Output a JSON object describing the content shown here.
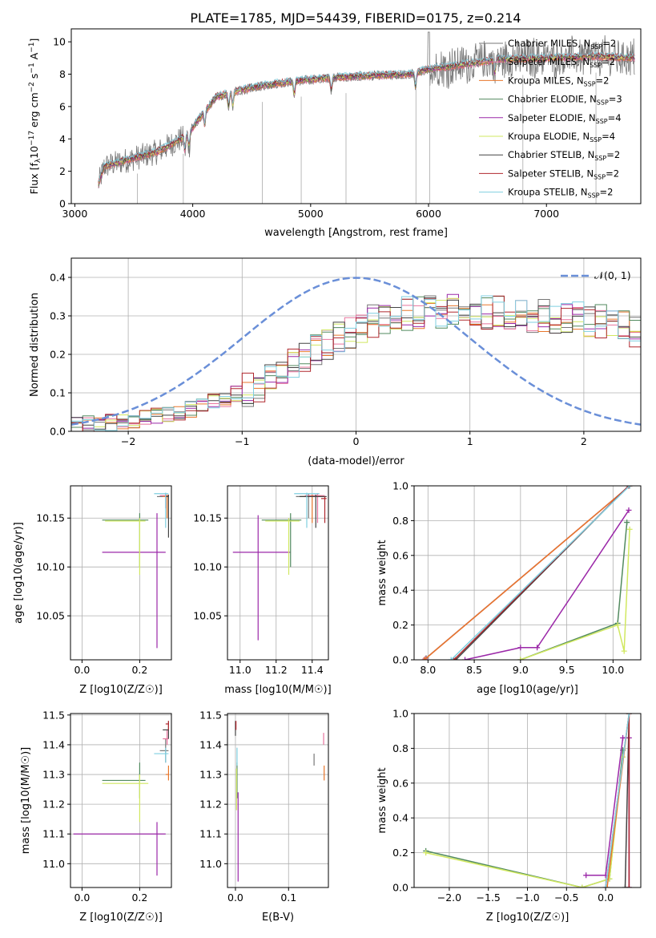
{
  "figure_title": "PLATE=1785, MJD=54439, FIBERID=0175, z=0.214",
  "models": [
    {
      "name": "Chabrier MILES",
      "nssp": "2",
      "color": "#777777"
    },
    {
      "name": "Salpeter MILES",
      "nssp": "2",
      "color": "#e8749e"
    },
    {
      "name": "Kroupa MILES",
      "nssp": "2",
      "color": "#e8762b"
    },
    {
      "name": "Chabrier ELODIE",
      "nssp": "3",
      "color": "#528a5f"
    },
    {
      "name": "Salpeter ELODIE",
      "nssp": "4",
      "color": "#9b28a8"
    },
    {
      "name": "Kroupa ELODIE",
      "nssp": "4",
      "color": "#d1e860"
    },
    {
      "name": "Chabrier STELIB",
      "nssp": "2",
      "color": "#444444"
    },
    {
      "name": "Salpeter STELIB",
      "nssp": "2",
      "color": "#b0282f"
    },
    {
      "name": "Kroupa STELIB",
      "nssp": "2",
      "color": "#7fcfe0"
    }
  ],
  "chart_data": [
    {
      "id": "spectrum",
      "type": "line",
      "title": "PLATE=1785, MJD=54439, FIBERID=0175, z=0.214",
      "xlabel": "wavelength [Angstrom, rest frame]",
      "ylabel_parts": {
        "pre": "Flux [f",
        "sub": "λ",
        "mid": "10",
        "sup1": "−17",
        "post": " erg cm",
        "sup2": "−2",
        "post2": " s",
        "sup3": "−1",
        "post3": " A",
        "sup4": "−1",
        "end": "]"
      },
      "xlim": [
        2970,
        7800
      ],
      "ylim": [
        0,
        10.8
      ],
      "xticks": [
        3000,
        4000,
        5000,
        6000,
        7000
      ],
      "yticks": [
        0,
        2,
        4,
        6,
        8,
        10
      ],
      "data_range": [
        3200,
        7750
      ],
      "continuum": [
        [
          3200,
          1.2
        ],
        [
          3250,
          2.3
        ],
        [
          3400,
          2.6
        ],
        [
          3550,
          2.9
        ],
        [
          3700,
          3.2
        ],
        [
          3850,
          3.8
        ],
        [
          3950,
          4.2
        ],
        [
          4050,
          5.2
        ],
        [
          4200,
          6.6
        ],
        [
          4400,
          7.0
        ],
        [
          4600,
          7.3
        ],
        [
          4900,
          7.6
        ],
        [
          5200,
          7.8
        ],
        [
          5500,
          7.9
        ],
        [
          5850,
          8.0
        ],
        [
          6000,
          8.3
        ],
        [
          6300,
          8.6
        ],
        [
          6600,
          8.9
        ],
        [
          7000,
          9.0
        ],
        [
          7400,
          9.1
        ],
        [
          7750,
          9.0
        ]
      ]
    },
    {
      "id": "residuals",
      "type": "histogram",
      "xlabel": "(data-model)/error",
      "ylabel": "Normed distribution",
      "xlim": [
        -2.5,
        2.5
      ],
      "ylim": [
        0,
        0.45
      ],
      "xticks": [
        -2,
        -1,
        0,
        1,
        2
      ],
      "yticks": [
        0.0,
        0.1,
        0.2,
        0.3,
        0.4
      ],
      "gauss_label": "𝒩(0, 1)",
      "gauss_color": "#6a8fd8",
      "bin_width": 0.1,
      "base": [
        0.015,
        0.018,
        0.02,
        0.023,
        0.026,
        0.03,
        0.034,
        0.038,
        0.043,
        0.05,
        0.058,
        0.066,
        0.075,
        0.085,
        0.095,
        0.107,
        0.12,
        0.135,
        0.152,
        0.17,
        0.19,
        0.21,
        0.228,
        0.245,
        0.26,
        0.275,
        0.285,
        0.295,
        0.3,
        0.305,
        0.31,
        0.312,
        0.313,
        0.313,
        0.312,
        0.31,
        0.31,
        0.308,
        0.306,
        0.304,
        0.302,
        0.3,
        0.298,
        0.296,
        0.294,
        0.29,
        0.285,
        0.278,
        0.27,
        0.262
      ]
    },
    {
      "id": "age_vs_Z",
      "type": "errorbar",
      "xlabel": "Z [log10(Z/Z☉)]",
      "ylabel": "age [log10(age/yr)]",
      "xlim": [
        -0.04,
        0.31
      ],
      "ylim": [
        10.005,
        10.183
      ],
      "xticks": [
        0.0,
        0.2
      ],
      "yticks": [
        10.05,
        10.1,
        10.15
      ],
      "points": [
        {
          "m": 4,
          "x": 0.07,
          "xe": [
            0.07,
            0.29
          ],
          "y": 10.115,
          "ye": [
            10.115,
            10.115
          ]
        },
        {
          "m": 4,
          "x": 0.26,
          "xe": [
            0.26,
            0.26
          ],
          "y": 10.115,
          "ye": [
            10.017,
            10.155
          ]
        },
        {
          "m": 3,
          "x": 0.2,
          "xe": [
            0.07,
            0.23
          ],
          "y": 10.148,
          "ye": [
            10.1,
            10.155
          ]
        },
        {
          "m": 5,
          "x": 0.2,
          "xe": [
            0.08,
            0.22
          ],
          "y": 10.147,
          "ye": [
            10.092,
            10.15
          ]
        },
        {
          "m": 0,
          "x": 0.29,
          "xe": [
            0.26,
            0.3
          ],
          "y": 10.172,
          "ye": [
            10.16,
            10.174
          ]
        },
        {
          "m": 1,
          "x": 0.29,
          "xe": [
            0.27,
            0.3
          ],
          "y": 10.173,
          "ye": [
            10.16,
            10.175
          ]
        },
        {
          "m": 2,
          "x": 0.295,
          "xe": [
            0.28,
            0.3
          ],
          "y": 10.172,
          "ye": [
            10.15,
            10.174
          ]
        },
        {
          "m": 6,
          "x": 0.3,
          "xe": [
            0.29,
            0.3
          ],
          "y": 10.172,
          "ye": [
            10.13,
            10.174
          ]
        },
        {
          "m": 8,
          "x": 0.29,
          "xe": [
            0.25,
            0.3
          ],
          "y": 10.175,
          "ye": [
            10.14,
            10.176
          ]
        }
      ]
    },
    {
      "id": "age_vs_mass",
      "type": "errorbar",
      "xlabel": "mass [log10(M/M☉)]",
      "ylabel": "",
      "xlim": [
        10.93,
        11.49
      ],
      "ylim": [
        10.005,
        10.183
      ],
      "xticks": [
        11.0,
        11.2,
        11.4
      ],
      "yticks": [
        10.05,
        10.1,
        10.15
      ],
      "points": [
        {
          "m": 4,
          "x": 11.1,
          "xe": [
            10.96,
            11.28
          ],
          "y": 10.115,
          "ye": [
            10.025,
            10.153
          ]
        },
        {
          "m": 3,
          "x": 11.28,
          "xe": [
            11.12,
            11.34
          ],
          "y": 10.148,
          "ye": [
            10.1,
            10.155
          ]
        },
        {
          "m": 5,
          "x": 11.27,
          "xe": [
            11.14,
            11.33
          ],
          "y": 10.147,
          "ye": [
            10.092,
            10.15
          ]
        },
        {
          "m": 0,
          "x": 11.38,
          "xe": [
            11.31,
            11.45
          ],
          "y": 10.172,
          "ye": [
            10.15,
            10.175
          ]
        },
        {
          "m": 1,
          "x": 11.43,
          "xe": [
            11.36,
            11.47
          ],
          "y": 10.173,
          "ye": [
            10.145,
            10.175
          ]
        },
        {
          "m": 2,
          "x": 11.4,
          "xe": [
            11.34,
            11.46
          ],
          "y": 10.172,
          "ye": [
            10.145,
            10.174
          ]
        },
        {
          "m": 6,
          "x": 11.42,
          "xe": [
            11.33,
            11.48
          ],
          "y": 10.172,
          "ye": [
            10.14,
            10.174
          ]
        },
        {
          "m": 7,
          "x": 11.47,
          "xe": [
            11.45,
            11.48
          ],
          "y": 10.17,
          "ye": [
            10.145,
            10.172
          ]
        },
        {
          "m": 8,
          "x": 11.37,
          "xe": [
            11.3,
            11.44
          ],
          "y": 10.175,
          "ye": [
            10.14,
            10.176
          ]
        }
      ]
    },
    {
      "id": "mass_weight_vs_age",
      "type": "line",
      "xlabel": "age [log10(age/yr)]",
      "ylabel": "mass weight",
      "xlim": [
        7.85,
        10.3
      ],
      "ylim": [
        0,
        1
      ],
      "xticks": [
        8.0,
        8.5,
        9.0,
        9.5,
        10.0
      ],
      "yticks": [
        0.0,
        0.2,
        0.4,
        0.6,
        0.8,
        1.0
      ],
      "series": [
        {
          "m": 0,
          "x": [
            7.98,
            10.18
          ],
          "y": [
            0.01,
            1.0
          ]
        },
        {
          "m": 1,
          "x": [
            7.97,
            10.18
          ],
          "y": [
            0.005,
            1.0
          ]
        },
        {
          "m": 2,
          "x": [
            7.96,
            10.18
          ],
          "y": [
            0.0,
            1.0
          ]
        },
        {
          "m": 6,
          "x": [
            8.3,
            10.17
          ],
          "y": [
            0.0,
            1.0
          ]
        },
        {
          "m": 7,
          "x": [
            8.28,
            10.17
          ],
          "y": [
            0.0,
            1.0
          ]
        },
        {
          "m": 8,
          "x": [
            8.25,
            10.18
          ],
          "y": [
            0.0,
            1.0
          ]
        },
        {
          "m": 3,
          "x": [
            9.0,
            10.05,
            10.15
          ],
          "y": [
            0.0,
            0.21,
            0.79
          ]
        },
        {
          "m": 4,
          "x": [
            8.4,
            9.0,
            9.18,
            10.17
          ],
          "y": [
            0.0,
            0.07,
            0.07,
            0.86
          ]
        },
        {
          "m": 5,
          "x": [
            9.0,
            10.05,
            10.12,
            10.18
          ],
          "y": [
            0.0,
            0.2,
            0.05,
            0.75
          ]
        }
      ]
    },
    {
      "id": "mass_vs_Z",
      "type": "errorbar",
      "xlabel": "Z [log10(Z/Z☉)]",
      "ylabel": "mass [log10(M/M☉)]",
      "xlim": [
        -0.04,
        0.31
      ],
      "ylim": [
        10.92,
        11.505
      ],
      "xticks": [
        0.0,
        0.2
      ],
      "yticks": [
        11.0,
        11.1,
        11.2,
        11.3,
        11.4,
        11.5
      ],
      "points": [
        {
          "m": 4,
          "x": 0.0,
          "xe": [
            -0.03,
            0.29
          ],
          "y": 11.1,
          "ye": [
            11.1,
            11.1
          ]
        },
        {
          "m": 4,
          "x": 0.26,
          "xe": [
            0.26,
            0.26
          ],
          "y": 11.1,
          "ye": [
            10.96,
            11.14
          ]
        },
        {
          "m": 3,
          "x": 0.2,
          "xe": [
            0.07,
            0.22
          ],
          "y": 11.28,
          "ye": [
            11.22,
            11.34
          ]
        },
        {
          "m": 5,
          "x": 0.2,
          "xe": [
            0.07,
            0.23
          ],
          "y": 11.27,
          "ye": [
            11.14,
            11.3
          ]
        },
        {
          "m": 0,
          "x": 0.29,
          "xe": [
            0.27,
            0.3
          ],
          "y": 11.38,
          "ye": [
            11.34,
            11.42
          ]
        },
        {
          "m": 1,
          "x": 0.295,
          "xe": [
            0.28,
            0.3
          ],
          "y": 11.42,
          "ye": [
            11.4,
            11.45
          ]
        },
        {
          "m": 2,
          "x": 0.3,
          "xe": [
            0.29,
            0.3
          ],
          "y": 11.3,
          "ye": [
            11.28,
            11.33
          ]
        },
        {
          "m": 6,
          "x": 0.3,
          "xe": [
            0.28,
            0.3
          ],
          "y": 11.45,
          "ye": [
            11.42,
            11.48
          ]
        },
        {
          "m": 7,
          "x": 0.3,
          "xe": [
            0.29,
            0.3
          ],
          "y": 11.47,
          "ye": [
            11.45,
            11.48
          ]
        },
        {
          "m": 8,
          "x": 0.29,
          "xe": [
            0.25,
            0.3
          ],
          "y": 11.37,
          "ye": [
            11.34,
            11.39
          ]
        }
      ]
    },
    {
      "id": "mass_vs_ebv",
      "type": "errorbar",
      "xlabel": "E(B-V)",
      "ylabel": "",
      "xlim": [
        -0.015,
        0.175
      ],
      "ylim": [
        10.92,
        11.505
      ],
      "xticks": [
        0.0,
        0.1
      ],
      "yticks": [
        11.0,
        11.1,
        11.2,
        11.3,
        11.4,
        11.5
      ],
      "points": [
        {
          "m": 4,
          "x": 0.005,
          "xe": [
            0.005,
            0.005
          ],
          "y": 11.1,
          "ye": [
            10.94,
            11.24
          ]
        },
        {
          "m": 3,
          "x": 0.003,
          "xe": [
            0.003,
            0.003
          ],
          "y": 11.28,
          "ye": [
            11.22,
            11.34
          ]
        },
        {
          "m": 5,
          "x": 0.002,
          "xe": [
            0.002,
            0.002
          ],
          "y": 11.27,
          "ye": [
            11.18,
            11.32
          ]
        },
        {
          "m": 6,
          "x": 0.0,
          "xe": [
            0.0,
            0.0
          ],
          "y": 11.45,
          "ye": [
            11.43,
            11.48
          ]
        },
        {
          "m": 7,
          "x": 0.001,
          "xe": [
            0.001,
            0.001
          ],
          "y": 11.47,
          "ye": [
            11.45,
            11.48
          ]
        },
        {
          "m": 8,
          "x": 0.003,
          "xe": [
            0.003,
            0.003
          ],
          "y": 11.37,
          "ye": [
            11.33,
            11.39
          ]
        },
        {
          "m": 0,
          "x": 0.148,
          "xe": [
            0.148,
            0.148
          ],
          "y": 11.35,
          "ye": [
            11.33,
            11.37
          ]
        },
        {
          "m": 1,
          "x": 0.166,
          "xe": [
            0.166,
            0.166
          ],
          "y": 11.42,
          "ye": [
            11.4,
            11.44
          ]
        },
        {
          "m": 2,
          "x": 0.167,
          "xe": [
            0.167,
            0.167
          ],
          "y": 11.3,
          "ye": [
            11.28,
            11.33
          ]
        }
      ]
    },
    {
      "id": "mass_weight_vs_Z",
      "type": "line",
      "xlabel": "Z [log10(Z/Z☉)]",
      "ylabel": "mass weight",
      "xlim": [
        -2.45,
        0.45
      ],
      "ylim": [
        0,
        1
      ],
      "xticks": [
        -2.0,
        -1.5,
        -1.0,
        -0.5,
        0.0
      ],
      "yticks": [
        0.0,
        0.2,
        0.4,
        0.6,
        0.8,
        1.0
      ],
      "series": [
        {
          "m": 3,
          "x": [
            -2.3,
            -0.3,
            0.05,
            0.22
          ],
          "y": [
            0.21,
            0.0,
            0.05,
            0.79
          ]
        },
        {
          "m": 5,
          "x": [
            -2.3,
            -0.3,
            0.05,
            0.22
          ],
          "y": [
            0.2,
            0.0,
            0.05,
            0.75
          ]
        },
        {
          "m": 4,
          "x": [
            -0.25,
            0.0,
            0.22,
            0.3,
            0.3
          ],
          "y": [
            0.07,
            0.07,
            0.86,
            0.86,
            0.0
          ]
        },
        {
          "m": 0,
          "x": [
            0.0,
            0.3
          ],
          "y": [
            0.0,
            1.0
          ]
        },
        {
          "m": 1,
          "x": [
            0.0,
            0.3
          ],
          "y": [
            0.0,
            1.0
          ]
        },
        {
          "m": 2,
          "x": [
            0.02,
            0.3
          ],
          "y": [
            0.0,
            1.0
          ]
        },
        {
          "m": 6,
          "x": [
            0.25,
            0.3
          ],
          "y": [
            0.0,
            1.0
          ]
        },
        {
          "m": 7,
          "x": [
            0.3,
            0.3
          ],
          "y": [
            0.0,
            1.0
          ]
        },
        {
          "m": 8,
          "x": [
            0.0,
            0.3
          ],
          "y": [
            0.0,
            1.0
          ]
        }
      ]
    }
  ]
}
